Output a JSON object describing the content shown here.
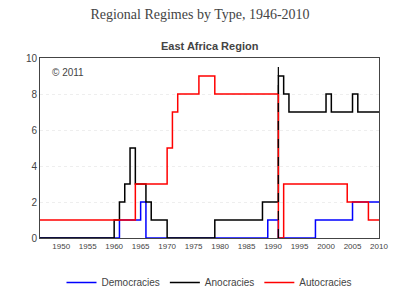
{
  "chart_data": {
    "type": "step",
    "title": "Regional Regimes by Type, 1946-2010",
    "subtitle": "East Africa Region",
    "annotations": [
      "© 2011"
    ],
    "x": [
      1946,
      1947,
      1948,
      1949,
      1950,
      1951,
      1952,
      1953,
      1954,
      1955,
      1956,
      1957,
      1958,
      1959,
      1960,
      1961,
      1962,
      1963,
      1964,
      1965,
      1966,
      1967,
      1968,
      1969,
      1970,
      1971,
      1972,
      1973,
      1974,
      1975,
      1976,
      1977,
      1978,
      1979,
      1980,
      1981,
      1982,
      1983,
      1984,
      1985,
      1986,
      1987,
      1988,
      1989,
      1990,
      1991,
      1992,
      1993,
      1994,
      1995,
      1996,
      1997,
      1998,
      1999,
      2000,
      2001,
      2002,
      2003,
      2004,
      2005,
      2006,
      2007,
      2008,
      2009,
      2010
    ],
    "series": [
      {
        "name": "Democracies",
        "color": "#0000ff",
        "values": [
          0,
          0,
          0,
          0,
          0,
          0,
          0,
          0,
          0,
          0,
          0,
          0,
          0,
          0,
          0,
          1,
          1,
          1,
          1,
          2,
          0,
          0,
          0,
          0,
          0,
          0,
          0,
          0,
          0,
          0,
          0,
          0,
          0,
          0,
          0,
          0,
          0,
          0,
          0,
          0,
          0,
          0,
          0,
          1,
          1,
          0,
          0,
          0,
          0,
          0,
          0,
          0,
          1,
          1,
          1,
          1,
          1,
          1,
          1,
          2,
          2,
          2,
          2,
          2,
          2
        ]
      },
      {
        "name": "Anocracies",
        "color": "#000000",
        "values": [
          0,
          0,
          0,
          0,
          0,
          0,
          0,
          0,
          0,
          0,
          0,
          0,
          0,
          0,
          1,
          2,
          3,
          5,
          3,
          3,
          2,
          1,
          1,
          1,
          0,
          0,
          0,
          0,
          0,
          0,
          0,
          0,
          0,
          1,
          1,
          1,
          1,
          1,
          1,
          1,
          1,
          1,
          2,
          2,
          2,
          9,
          8,
          7,
          7,
          7,
          7,
          7,
          7,
          7,
          8,
          7,
          7,
          7,
          7,
          8,
          7,
          7,
          7,
          7,
          7
        ]
      },
      {
        "name": "Autocracies",
        "color": "#ff0000",
        "values": [
          1,
          1,
          1,
          1,
          1,
          1,
          1,
          1,
          1,
          1,
          1,
          1,
          1,
          1,
          1,
          1,
          1,
          1,
          3,
          3,
          3,
          3,
          3,
          3,
          5,
          7,
          8,
          8,
          8,
          8,
          9,
          9,
          9,
          8,
          8,
          8,
          8,
          8,
          8,
          8,
          8,
          8,
          8,
          8,
          8,
          0,
          3,
          3,
          3,
          3,
          3,
          3,
          3,
          3,
          3,
          3,
          3,
          3,
          2,
          2,
          2,
          2,
          1,
          1,
          1
        ]
      }
    ],
    "vline": 1991,
    "xlim": [
      1946,
      2010
    ],
    "xticks": [
      1950,
      1955,
      1960,
      1965,
      1970,
      1975,
      1980,
      1985,
      1990,
      1995,
      2000,
      2005,
      2010
    ],
    "ylim": [
      0,
      10
    ],
    "yticks": [
      0,
      2,
      4,
      6,
      8,
      10
    ],
    "grid": "y",
    "legend": "bottom"
  }
}
